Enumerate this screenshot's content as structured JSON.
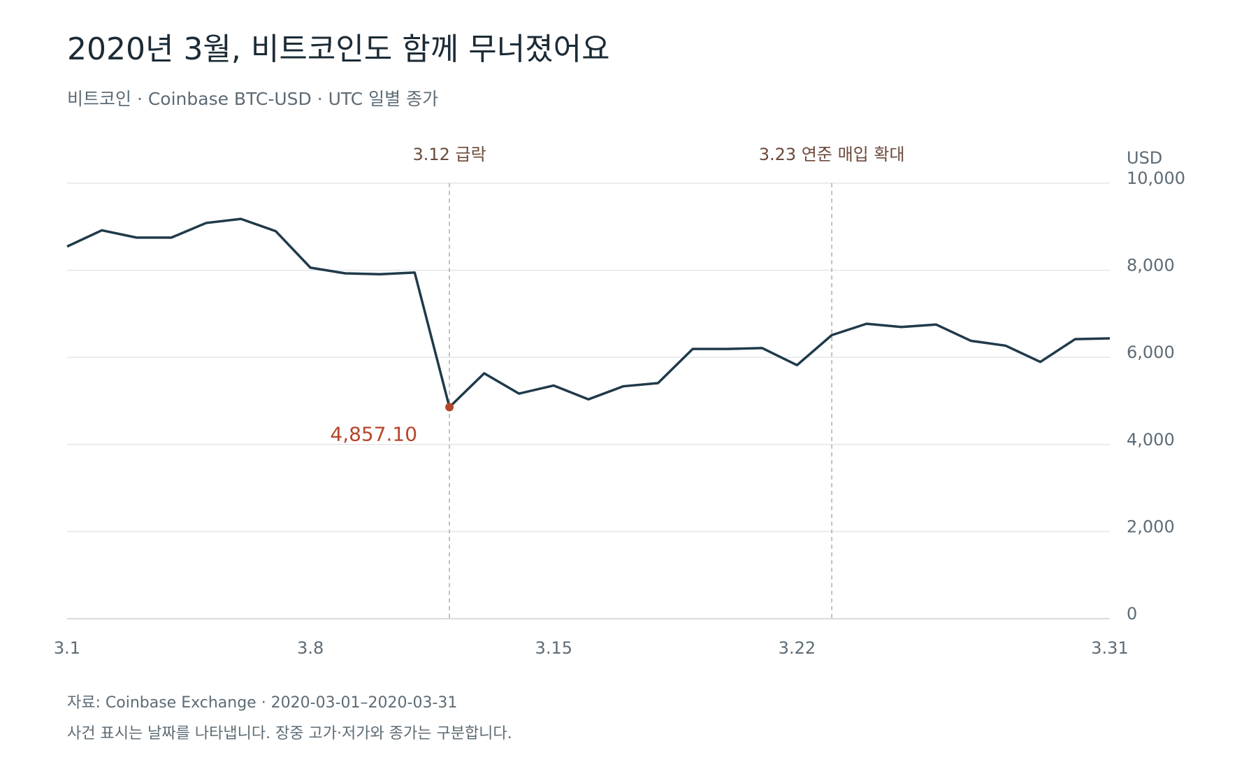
{
  "chart_data": {
    "type": "line",
    "title": "2020년 3월, 비트코인도 함께 무너졌어요",
    "subtitle": "비트코인 · Coinbase BTC-USD · UTC 일별 종가",
    "y_label": "USD",
    "x": [
      1,
      2,
      3,
      4,
      5,
      6,
      7,
      8,
      9,
      10,
      11,
      12,
      13,
      14,
      15,
      16,
      17,
      18,
      19,
      20,
      21,
      22,
      23,
      24,
      25,
      26,
      27,
      28,
      29,
      30,
      31
    ],
    "values": [
      8545,
      8918,
      8750,
      8750,
      9086,
      9179,
      8899,
      8060,
      7929,
      7910,
      7948,
      4857.1,
      5634,
      5168,
      5354,
      5037,
      5336,
      5410,
      6194,
      6194,
      6213,
      5821,
      6511,
      6772,
      6698,
      6754,
      6381,
      6269,
      5896,
      6418,
      6437
    ],
    "value_labels": [
      null,
      null,
      null,
      null,
      null,
      null,
      null,
      null,
      null,
      null,
      null,
      "4,857.10",
      null,
      null,
      null,
      null,
      null,
      null,
      null,
      null,
      null,
      null,
      null,
      null,
      null,
      null,
      null,
      null,
      null,
      null,
      null
    ],
    "color": "#1f3a4a",
    "highlight_color": "#b5462a",
    "xlim": [
      1,
      31
    ],
    "xticks": [
      {
        "value": 1,
        "label": "3.1"
      },
      {
        "value": 8,
        "label": "3.8"
      },
      {
        "value": 15,
        "label": "3.15"
      },
      {
        "value": 22,
        "label": "3.22"
      },
      {
        "value": 31,
        "label": "3.31"
      }
    ],
    "ylim": [
      0,
      10000
    ],
    "yticks": [
      0,
      {
        "value": 2000,
        "label": "2,000"
      },
      {
        "value": 4000,
        "label": "4,000"
      },
      {
        "value": 6000,
        "label": "6,000"
      },
      {
        "value": 8000,
        "label": "8,000"
      },
      {
        "value": 10000,
        "label": "10,000"
      }
    ],
    "grid": true,
    "annotations": [
      {
        "x": 12,
        "label": "3.12 급락"
      },
      {
        "x": 23,
        "label": "3.23 연준 매입 확대"
      }
    ],
    "source": "자료: Coinbase Exchange · 2020-03-01–2020-03-31",
    "note": "사건 표시는 날짜를 나타냅니다. 장중 고가·저가와 종가는 구분합니다."
  }
}
